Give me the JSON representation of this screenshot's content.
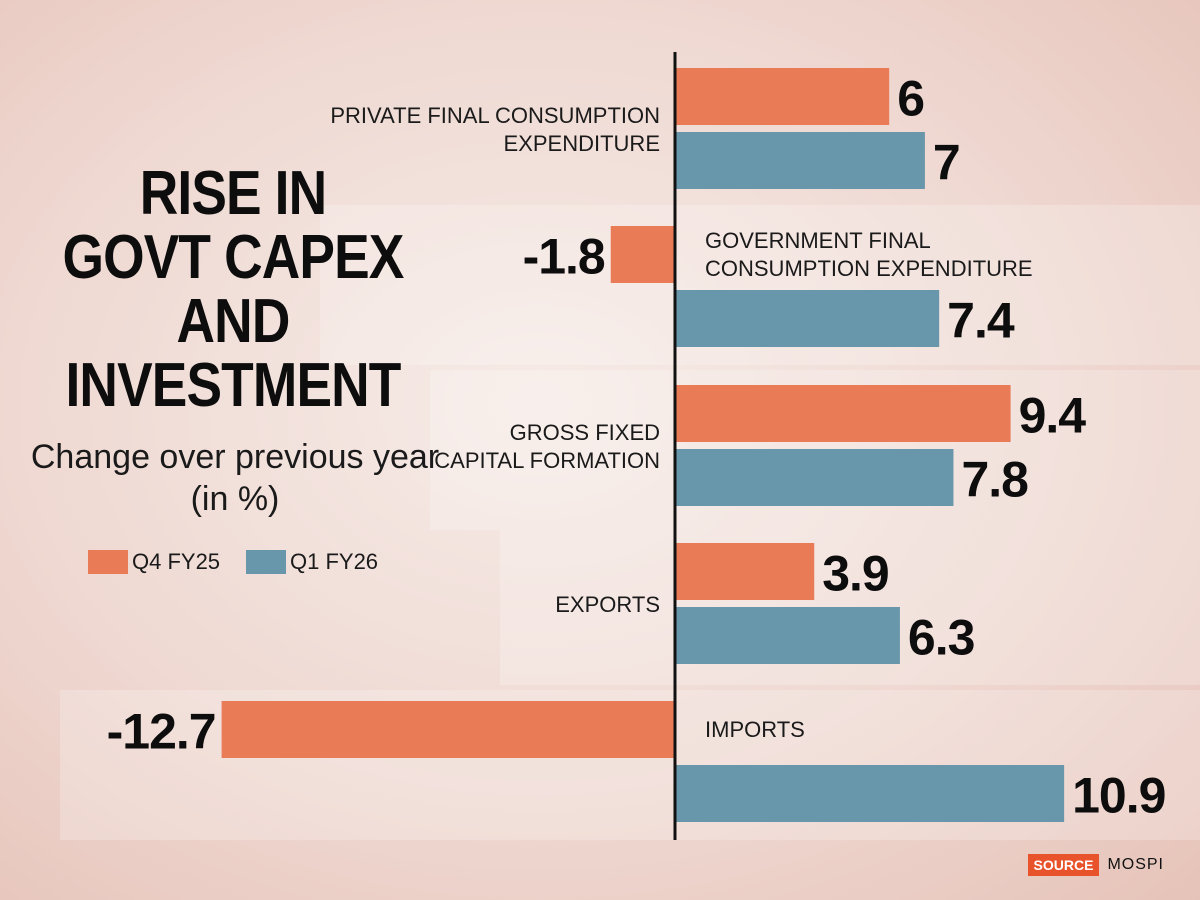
{
  "title_lines": [
    "RISE IN",
    "GOVT CAPEX",
    "AND",
    "INVESTMENT"
  ],
  "subtitle": "Change over previous year (in %)",
  "legend": [
    {
      "label": "Q4 FY25",
      "color": "#e97b56"
    },
    {
      "label": "Q1 FY26",
      "color": "#6896ab"
    }
  ],
  "source": {
    "label": "SOURCE",
    "value": "MOSPI"
  },
  "colors": {
    "q4": "#e97b56",
    "q1": "#6896ab",
    "axis": "#111111",
    "source_tag": "#e8532b"
  },
  "chart_data": {
    "type": "bar",
    "orientation": "horizontal",
    "title": "RISE IN GOVT CAPEX AND INVESTMENT",
    "subtitle": "Change over previous year (in %)",
    "categories": [
      [
        "PRIVATE FINAL CONSUMPTION",
        "EXPENDITURE"
      ],
      [
        "GOVERNMENT FINAL",
        "CONSUMPTION EXPENDITURE"
      ],
      [
        "GROSS FIXED",
        "CAPITAL FORMATION"
      ],
      [
        "EXPORTS"
      ],
      [
        "IMPORTS"
      ]
    ],
    "series": [
      {
        "name": "Q4 FY25",
        "values": [
          6,
          -1.8,
          9.4,
          3.9,
          -12.7
        ],
        "labels": [
          "6",
          "-1.8",
          "9.4",
          "3.9",
          "-12.7"
        ]
      },
      {
        "name": "Q1 FY26",
        "values": [
          7,
          7.4,
          7.8,
          6.3,
          10.9
        ],
        "labels": [
          "7",
          "7.4",
          "7.8",
          "6.3",
          "10.9"
        ]
      }
    ],
    "xlim": [
      -12.7,
      10.9
    ],
    "legend_position": "left",
    "grid": false
  }
}
